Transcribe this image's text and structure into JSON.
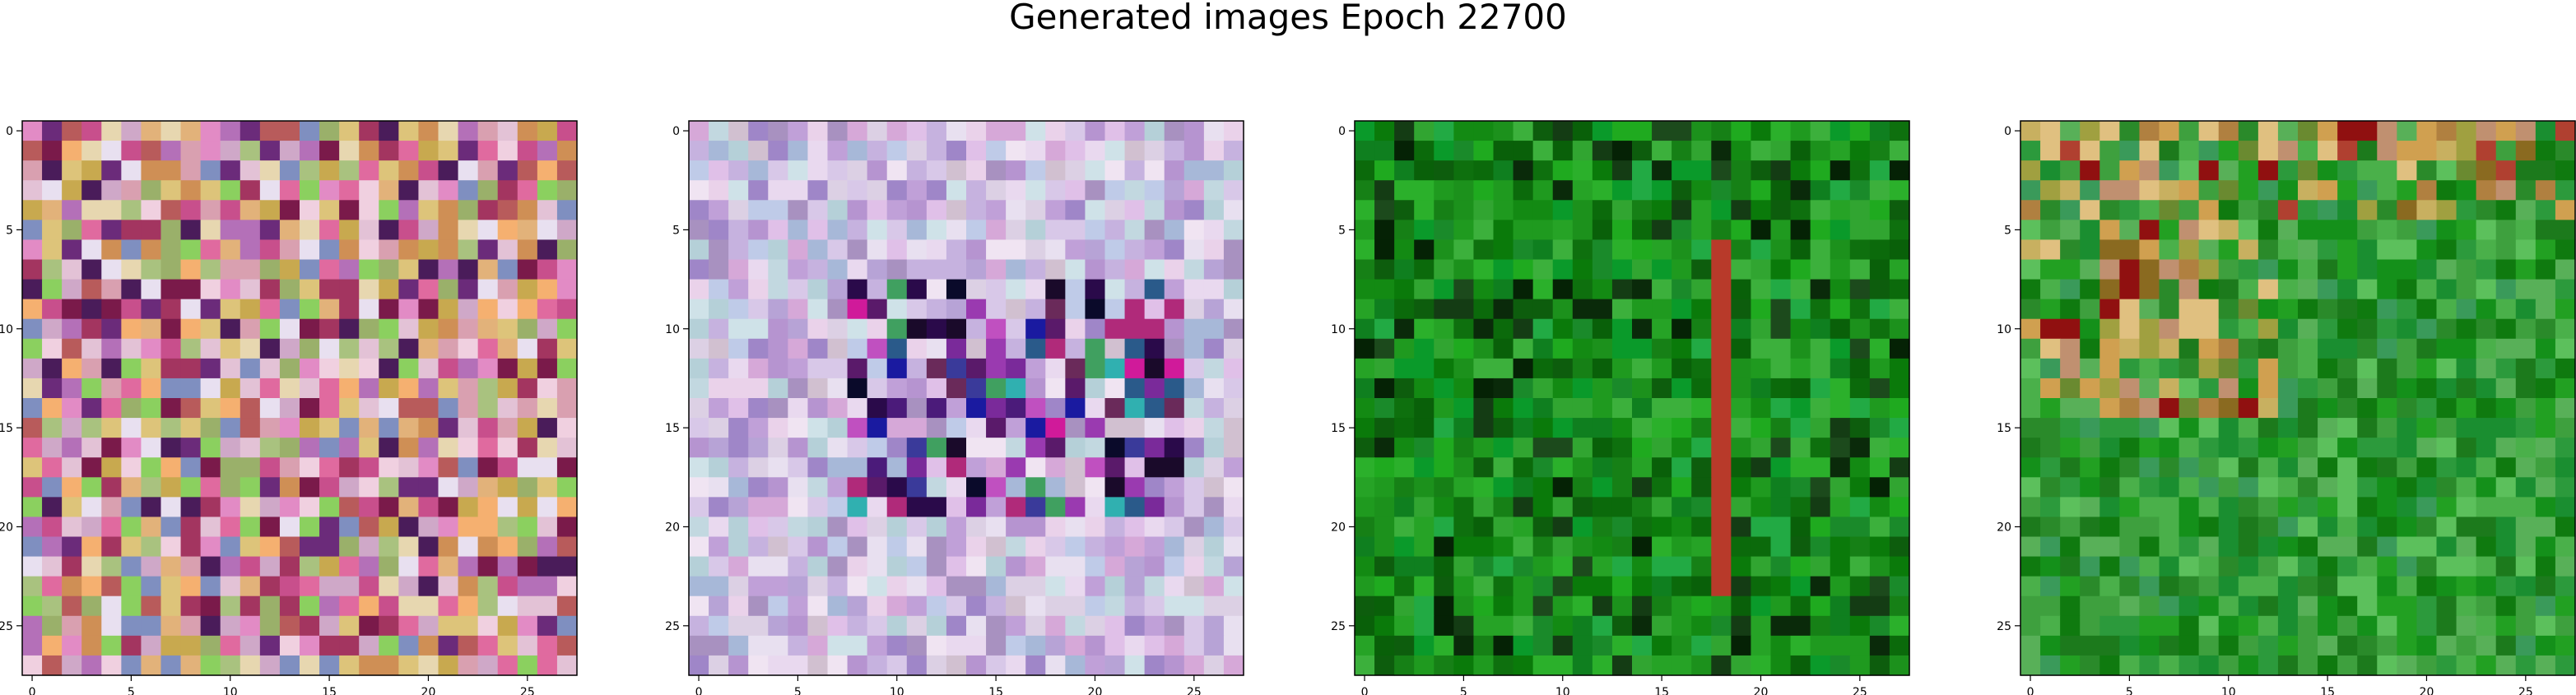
{
  "figure": {
    "title": "Generated images Epoch 22700"
  },
  "chart_data": [
    {
      "type": "heatmap",
      "title": "",
      "xlabel": "",
      "ylabel": "",
      "grid": false,
      "size": [
        28,
        28
      ],
      "xlim": [
        -0.5,
        27.5
      ],
      "ylim": [
        27.5,
        -0.5
      ],
      "xticks": [
        0,
        5,
        10,
        15,
        20,
        25
      ],
      "yticks": [
        0,
        5,
        10,
        15,
        20,
        25
      ],
      "palette": [
        "#d9a0b0",
        "#c84f8c",
        "#e2b27a",
        "#cf8f55",
        "#a9c27f",
        "#e28bc5",
        "#6b2b7a",
        "#e3c2d6",
        "#b85b5b",
        "#ddc47a",
        "#f0d0e0",
        "#a33560",
        "#7f8fc0",
        "#c8a94f",
        "#e06a9f",
        "#9ab06a",
        "#4a1c5a",
        "#e7d7b0",
        "#b470b8",
        "#f5b070",
        "#cfa8c8",
        "#8bd05f",
        "#7a1a4a",
        "#e8e0f0"
      ],
      "seed": 11
    },
    {
      "type": "heatmap",
      "title": "",
      "xlabel": "",
      "ylabel": "",
      "grid": false,
      "size": [
        28,
        28
      ],
      "xlim": [
        -0.5,
        27.5
      ],
      "ylim": [
        27.5,
        -0.5
      ],
      "xticks": [
        0,
        5,
        10,
        15,
        20,
        25
      ],
      "yticks": [
        0,
        5,
        10,
        15,
        20,
        25
      ],
      "palette": [
        "#d8c8e8",
        "#c6b2df",
        "#e9d9ef",
        "#b7a3d6",
        "#d6a8d8",
        "#ead2ea",
        "#a7b8d8",
        "#c2d8e0",
        "#b694d0",
        "#e0c0e8",
        "#9f86c8",
        "#d1c0d0",
        "#bfcbe8",
        "#cfe2e8",
        "#a891c0",
        "#e8e0f0",
        "#c0a0d8",
        "#b5d0d8",
        "#dcd0e4",
        "#f0e4f2"
      ],
      "center_palette": [
        "#2a0a4a",
        "#4b1b7a",
        "#1a0a2a",
        "#7a2a9a",
        "#d01a9a",
        "#3a3a9a",
        "#0a0a2a",
        "#9a3ab0",
        "#5a1a6a",
        "#c050c0",
        "#2a5a8a",
        "#1a1aa0",
        "#6a2a5a",
        "#b02a7a",
        "#40a060",
        "#30b0b0"
      ],
      "seed": 23
    },
    {
      "type": "heatmap",
      "title": "",
      "xlabel": "",
      "ylabel": "",
      "grid": false,
      "size": [
        28,
        28
      ],
      "xlim": [
        -0.5,
        27.5
      ],
      "ylim": [
        27.5,
        -0.5
      ],
      "xticks": [
        0,
        5,
        10,
        15,
        20,
        25
      ],
      "yticks": [
        0,
        5,
        10,
        15,
        20,
        25
      ],
      "palette": [
        "#0a7a0a",
        "#138a13",
        "#1f9a1f",
        "#0b6a0b",
        "#26a326",
        "#1a8a2a",
        "#0f7f1f",
        "#2bb02b",
        "#0d5d0d",
        "#31a531",
        "#168016",
        "#0a9a2a",
        "#22aa44",
        "#1c911c",
        "#0e700e",
        "#3cb03c",
        "#096009",
        "#1faa1f"
      ],
      "dark_palette": [
        "#0a2a0a",
        "#143c14",
        "#052205",
        "#1c4a1c"
      ],
      "stripe_color": "#b83a2a",
      "stripe_column": 18,
      "seed": 37
    },
    {
      "type": "heatmap",
      "title": "",
      "xlabel": "",
      "ylabel": "",
      "grid": false,
      "size": [
        28,
        28
      ],
      "xlim": [
        -0.5,
        27.5
      ],
      "ylim": [
        27.5,
        -0.5
      ],
      "xticks": [
        0,
        5,
        10,
        15,
        20,
        25
      ],
      "yticks": [
        0,
        5,
        10,
        15,
        20,
        25
      ],
      "palette": [
        "#2a8a2a",
        "#3ea03e",
        "#1c7a1c",
        "#58b058",
        "#2c9a3c",
        "#14901a",
        "#4ab04a",
        "#22a022",
        "#0f7a0f",
        "#5cc05c",
        "#1a8e30",
        "#3a9a5a"
      ],
      "warm_palette": [
        "#c8b060",
        "#a0a040",
        "#d0a050",
        "#b08040",
        "#b04030",
        "#901010",
        "#e0c080",
        "#c09070",
        "#6a8a30",
        "#8a6a20"
      ],
      "seed": 53
    }
  ]
}
